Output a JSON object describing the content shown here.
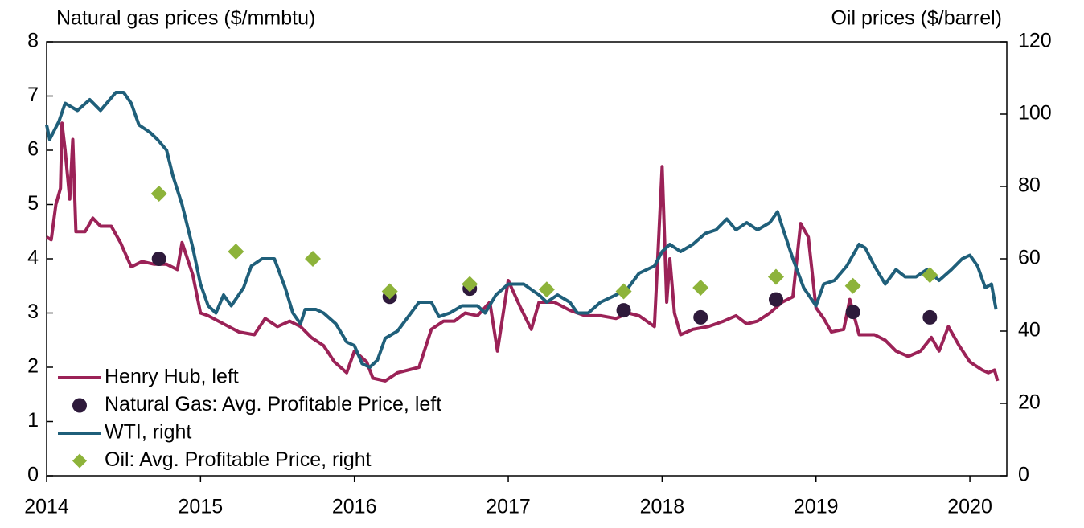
{
  "chart_data": {
    "type": "line",
    "ylabel": "Natural gas prices ($/mmbtu)",
    "y2label": "Oil prices ($/barrel)",
    "xlim": [
      2014,
      2020.24
    ],
    "xticks": [
      2014,
      2015,
      2016,
      2017,
      2018,
      2019,
      2020
    ],
    "ylim": [
      0,
      8
    ],
    "yticks": [
      0,
      1,
      2,
      3,
      4,
      5,
      6,
      7,
      8
    ],
    "y2lim": [
      0,
      120
    ],
    "y2ticks": [
      0,
      20,
      40,
      60,
      80,
      100,
      120
    ],
    "legend": "lower left",
    "series": [
      {
        "name": "Henry Hub, left",
        "type": "line",
        "color": "#9b2257",
        "x": [
          2014.0,
          2014.03,
          2014.06,
          2014.09,
          2014.1,
          2014.12,
          2014.15,
          2014.17,
          2014.19,
          2014.25,
          2014.3,
          2014.35,
          2014.42,
          2014.48,
          2014.55,
          2014.62,
          2014.7,
          2014.78,
          2014.85,
          2014.88,
          2014.95,
          2015.0,
          2015.05,
          2015.15,
          2015.25,
          2015.35,
          2015.42,
          2015.5,
          2015.58,
          2015.65,
          2015.72,
          2015.8,
          2015.87,
          2015.95,
          2016.0,
          2016.08,
          2016.12,
          2016.2,
          2016.28,
          2016.35,
          2016.42,
          2016.5,
          2016.58,
          2016.65,
          2016.72,
          2016.8,
          2016.88,
          2016.93,
          2017.0,
          2017.08,
          2017.15,
          2017.2,
          2017.3,
          2017.4,
          2017.5,
          2017.6,
          2017.7,
          2017.78,
          2017.85,
          2017.95,
          2018.0,
          2018.03,
          2018.05,
          2018.08,
          2018.12,
          2018.2,
          2018.3,
          2018.4,
          2018.48,
          2018.55,
          2018.62,
          2018.7,
          2018.78,
          2018.85,
          2018.9,
          2018.95,
          2019.0,
          2019.05,
          2019.1,
          2019.18,
          2019.22,
          2019.28,
          2019.38,
          2019.45,
          2019.52,
          2019.6,
          2019.68,
          2019.75,
          2019.8,
          2019.86,
          2019.93,
          2020.0,
          2020.08,
          2020.12,
          2020.16,
          2020.18
        ],
        "values": [
          4.4,
          4.35,
          5.0,
          5.3,
          6.5,
          6.0,
          5.1,
          6.2,
          4.5,
          4.5,
          4.75,
          4.6,
          4.6,
          4.3,
          3.85,
          3.95,
          3.9,
          3.9,
          3.8,
          4.3,
          3.7,
          3.0,
          2.95,
          2.8,
          2.65,
          2.6,
          2.9,
          2.75,
          2.85,
          2.75,
          2.55,
          2.4,
          2.1,
          1.9,
          2.3,
          2.1,
          1.8,
          1.75,
          1.9,
          1.95,
          2.0,
          2.7,
          2.85,
          2.85,
          3.0,
          2.95,
          3.2,
          2.3,
          3.6,
          3.1,
          2.7,
          3.2,
          3.2,
          3.05,
          2.95,
          2.95,
          2.9,
          3.0,
          2.95,
          2.75,
          5.7,
          3.2,
          4.0,
          3.0,
          2.6,
          2.7,
          2.75,
          2.85,
          2.95,
          2.8,
          2.85,
          3.0,
          3.2,
          3.3,
          4.65,
          4.4,
          3.1,
          2.9,
          2.65,
          2.7,
          3.25,
          2.6,
          2.6,
          2.5,
          2.3,
          2.2,
          2.3,
          2.55,
          2.3,
          2.75,
          2.4,
          2.1,
          1.95,
          1.9,
          1.95,
          1.75
        ]
      },
      {
        "name": "Natural Gas: Avg. Profitable Price, left",
        "type": "scatter",
        "marker": "circle",
        "color": "#2e1a3b",
        "x": [
          2014.73,
          2016.23,
          2016.75,
          2017.75,
          2018.25,
          2018.74,
          2019.24,
          2019.74
        ],
        "values": [
          4.0,
          3.3,
          3.45,
          3.05,
          2.92,
          3.25,
          3.02,
          2.92
        ]
      },
      {
        "name": "WTI, right",
        "type": "line",
        "axis": "y2",
        "color": "#1f5f7a",
        "x": [
          2014.0,
          2014.02,
          2014.08,
          2014.12,
          2014.2,
          2014.28,
          2014.35,
          2014.45,
          2014.5,
          2014.55,
          2014.6,
          2014.67,
          2014.72,
          2014.78,
          2014.82,
          2014.88,
          2014.95,
          2015.0,
          2015.05,
          2015.1,
          2015.15,
          2015.2,
          2015.28,
          2015.33,
          2015.4,
          2015.48,
          2015.55,
          2015.6,
          2015.65,
          2015.68,
          2015.75,
          2015.8,
          2015.88,
          2015.95,
          2016.0,
          2016.05,
          2016.1,
          2016.15,
          2016.2,
          2016.28,
          2016.35,
          2016.42,
          2016.5,
          2016.55,
          2016.62,
          2016.7,
          2016.8,
          2016.85,
          2016.92,
          2017.0,
          2017.1,
          2017.2,
          2017.25,
          2017.32,
          2017.4,
          2017.45,
          2017.52,
          2017.6,
          2017.7,
          2017.78,
          2017.85,
          2017.95,
          2018.0,
          2018.05,
          2018.12,
          2018.2,
          2018.28,
          2018.35,
          2018.42,
          2018.48,
          2018.55,
          2018.62,
          2018.7,
          2018.75,
          2018.78,
          2018.85,
          2018.92,
          2019.0,
          2019.05,
          2019.12,
          2019.2,
          2019.28,
          2019.32,
          2019.38,
          2019.45,
          2019.52,
          2019.58,
          2019.65,
          2019.72,
          2019.8,
          2019.88,
          2019.95,
          2020.0,
          2020.05,
          2020.1,
          2020.14,
          2020.17
        ],
        "values": [
          97,
          93,
          98,
          103,
          101,
          104,
          101,
          106,
          106,
          103,
          97,
          95,
          93,
          90,
          83,
          75,
          63,
          53,
          47,
          45,
          50,
          47,
          52,
          58,
          60,
          60,
          52,
          45,
          42,
          46,
          46,
          45,
          42,
          37,
          36,
          31,
          30,
          32,
          38,
          40,
          44,
          48,
          48,
          44,
          45,
          47,
          47,
          45,
          50,
          53,
          53,
          50,
          48,
          50,
          48,
          45,
          45,
          48,
          50,
          52,
          56,
          58,
          62,
          64,
          62,
          64,
          67,
          68,
          71,
          68,
          70,
          68,
          70,
          73,
          69,
          60,
          52,
          47,
          53,
          54,
          58,
          64,
          63,
          58,
          53,
          57,
          55,
          55,
          57,
          54,
          57,
          60,
          61,
          58,
          52,
          53,
          46
        ]
      },
      {
        "name": "Oil: Avg. Profitable Price, right",
        "type": "scatter",
        "marker": "diamond",
        "axis": "y2",
        "color": "#8db33a",
        "x": [
          2014.73,
          2015.23,
          2015.73,
          2016.23,
          2016.75,
          2017.25,
          2017.75,
          2018.25,
          2018.74,
          2019.24,
          2019.74
        ],
        "values": [
          78,
          62,
          60,
          51,
          53,
          51.5,
          51,
          52,
          55,
          52.5,
          55.5
        ]
      }
    ]
  }
}
